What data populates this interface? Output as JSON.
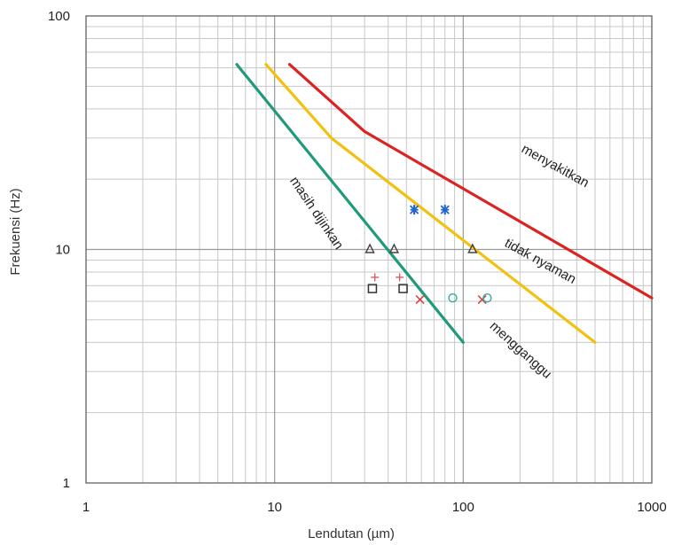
{
  "chart_data": {
    "type": "line",
    "xlabel": "Lendutan (µm)",
    "ylabel": "Frekuensi (Hz)",
    "xscale": "log",
    "yscale": "log",
    "xlim": [
      1,
      1000
    ],
    "ylim": [
      1,
      100
    ],
    "xticks": [
      "1",
      "10",
      "100",
      "1000"
    ],
    "yticks": [
      "1",
      "10",
      "100"
    ],
    "grid": true,
    "series": [
      {
        "color": "#1f9a7a",
        "x": [
          6.3,
          100
        ],
        "y": [
          62,
          4
        ]
      },
      {
        "color": "#f2c10f",
        "x": [
          9,
          20,
          500
        ],
        "y": [
          62,
          30,
          4
        ]
      },
      {
        "color": "#dd2222",
        "x": [
          12,
          30,
          1000
        ],
        "y": [
          62,
          32,
          6.2
        ]
      }
    ],
    "annotations": [
      {
        "text": "menyakitkan",
        "x": 300,
        "y": 22,
        "rotation": 29
      },
      {
        "text": "tidak nyaman",
        "x": 250,
        "y": 8.6,
        "rotation": 29
      },
      {
        "text": "mengganggu",
        "x": 195,
        "y": 3.6,
        "rotation": 42
      },
      {
        "text": "masih dijinkan",
        "x": 16,
        "y": 14,
        "rotation": 56
      }
    ],
    "markers": [
      {
        "symbol": "triangle",
        "color": "#444444",
        "x": 32,
        "y": 10
      },
      {
        "symbol": "triangle",
        "color": "#444444",
        "x": 43,
        "y": 10
      },
      {
        "symbol": "triangle",
        "color": "#444444",
        "x": 112,
        "y": 10
      },
      {
        "symbol": "square",
        "color": "#333333",
        "x": 33,
        "y": 6.8
      },
      {
        "symbol": "square",
        "color": "#333333",
        "x": 48,
        "y": 6.8
      },
      {
        "symbol": "asterisk",
        "color": "#2266cc",
        "x": 55,
        "y": 14.8
      },
      {
        "symbol": "asterisk",
        "color": "#2266cc",
        "x": 80,
        "y": 14.8
      },
      {
        "symbol": "plus",
        "color": "#e05a5a",
        "x": 34,
        "y": 7.6
      },
      {
        "symbol": "plus",
        "color": "#e05a5a",
        "x": 46,
        "y": 7.6
      },
      {
        "symbol": "cross",
        "color": "#d94040",
        "x": 59,
        "y": 6.1
      },
      {
        "symbol": "cross",
        "color": "#d94040",
        "x": 126,
        "y": 6.1
      },
      {
        "symbol": "circle",
        "color": "#2ab0a0",
        "x": 88,
        "y": 6.2
      },
      {
        "symbol": "circle",
        "color": "#2ab0a0",
        "x": 134,
        "y": 6.2
      }
    ]
  }
}
